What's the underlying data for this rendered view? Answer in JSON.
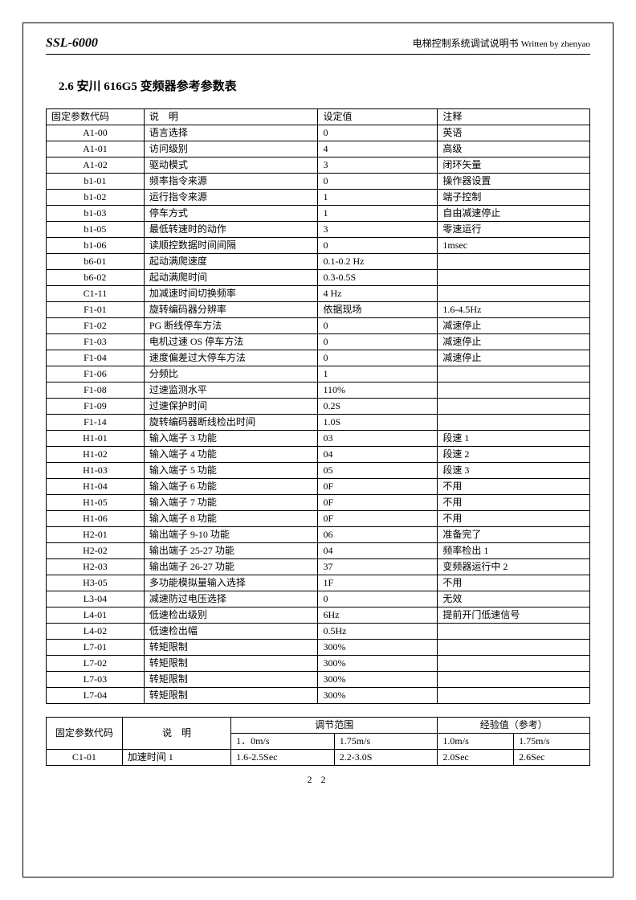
{
  "header": {
    "model": "SSL-6000",
    "doc_title": "电梯控制系统调试说明书",
    "written_by": "Written by zhenyao"
  },
  "section_heading": "2.6 安川 616G5 变频器参考参数表",
  "main_table": {
    "headers": {
      "code": "固定参数代码",
      "desc": "说　明",
      "value": "设定值",
      "note": "注释"
    },
    "rows": [
      {
        "code": "A1-00",
        "desc": "语言选择",
        "value": "0",
        "note": "英语"
      },
      {
        "code": "A1-01",
        "desc": "访问级别",
        "value": "4",
        "note": "高级"
      },
      {
        "code": "A1-02",
        "desc": "驱动模式",
        "value": "3",
        "note": "闭环矢量"
      },
      {
        "code": "b1-01",
        "desc": "频率指令来源",
        "value": "0",
        "note": "操作器设置"
      },
      {
        "code": "b1-02",
        "desc": "运行指令来源",
        "value": "1",
        "note": "端子控制"
      },
      {
        "code": "b1-03",
        "desc": "停车方式",
        "value": "1",
        "note": "自由减速停止"
      },
      {
        "code": "b1-05",
        "desc": "最低转速时的动作",
        "value": "3",
        "note": "零速运行"
      },
      {
        "code": "b1-06",
        "desc": "读顺控数据时间间隔",
        "value": "0",
        "note": "1msec"
      },
      {
        "code": "b6-01",
        "desc": "起动满爬速度",
        "value": "0.1-0.2 Hz",
        "note": ""
      },
      {
        "code": "b6-02",
        "desc": "起动满爬时间",
        "value": "0.3-0.5S",
        "note": ""
      },
      {
        "code": "C1-11",
        "desc": "加减速时间切换频率",
        "value": "4 Hz",
        "note": ""
      },
      {
        "code": "F1-01",
        "desc": "旋转编码器分辨率",
        "value": "依据现场",
        "note": "1.6-4.5Hz"
      },
      {
        "code": "F1-02",
        "desc": "PG 断线停车方法",
        "value": "0",
        "note": "减速停止"
      },
      {
        "code": "F1-03",
        "desc": "电机过速 OS 停车方法",
        "value": "0",
        "note": "减速停止"
      },
      {
        "code": "F1-04",
        "desc": "速度偏差过大停车方法",
        "value": "0",
        "note": "减速停止"
      },
      {
        "code": "F1-06",
        "desc": "分频比",
        "value": "1",
        "note": ""
      },
      {
        "code": "F1-08",
        "desc": "过速监测水平",
        "value": "110%",
        "note": ""
      },
      {
        "code": "F1-09",
        "desc": "过速保护时间",
        "value": "0.2S",
        "note": ""
      },
      {
        "code": "F1-14",
        "desc": "旋转编码器断线检出时间",
        "value": "1.0S",
        "note": ""
      },
      {
        "code": "H1-01",
        "desc": "输入端子 3 功能",
        "value": "03",
        "note": "段速 1"
      },
      {
        "code": "H1-02",
        "desc": "输入端子 4 功能",
        "value": "04",
        "note": "段速 2"
      },
      {
        "code": "H1-03",
        "desc": "输入端子 5 功能",
        "value": "05",
        "note": "段速 3"
      },
      {
        "code": "H1-04",
        "desc": "输入端子 6 功能",
        "value": "0F",
        "note": "不用"
      },
      {
        "code": "H1-05",
        "desc": "输入端子 7 功能",
        "value": "0F",
        "note": "不用"
      },
      {
        "code": "H1-06",
        "desc": "输入端子 8 功能",
        "value": "0F",
        "note": "不用"
      },
      {
        "code": "H2-01",
        "desc": "输出端子 9-10 功能",
        "value": "06",
        "note": "准备完了"
      },
      {
        "code": "H2-02",
        "desc": "输出端子 25-27 功能",
        "value": "04",
        "note": "频率检出 1"
      },
      {
        "code": "H2-03",
        "desc": "输出端子 26-27 功能",
        "value": "37",
        "note": "变频器运行中 2"
      },
      {
        "code": "H3-05",
        "desc": "多功能模拟量输入选择",
        "value": "1F",
        "note": "不用"
      },
      {
        "code": "L3-04",
        "desc": "减速防过电压选择",
        "value": "0",
        "note": "无效"
      },
      {
        "code": "L4-01",
        "desc": "低速检出级别",
        "value": "6Hz",
        "note": "提前开门低速信号"
      },
      {
        "code": "L4-02",
        "desc": "低速检出幅",
        "value": "0.5Hz",
        "note": ""
      },
      {
        "code": "L7-01",
        "desc": "转矩限制",
        "value": "300%",
        "note": ""
      },
      {
        "code": "L7-02",
        "desc": "转矩限制",
        "value": "300%",
        "note": ""
      },
      {
        "code": "L7-03",
        "desc": "转矩限制",
        "value": "300%",
        "note": ""
      },
      {
        "code": "L7-04",
        "desc": "转矩限制",
        "value": "300%",
        "note": ""
      }
    ]
  },
  "sec_table": {
    "h_code": "固定参数代码",
    "h_desc": "说　明",
    "h_range": "调节范围",
    "h_ref": "经验值（参考）",
    "sub1": "1．0m/s",
    "sub2": "1.75m/s",
    "sub3": "1.0m/s",
    "sub4": "1.75m/s",
    "rows": [
      {
        "code": "C1-01",
        "desc": "加速时间 1",
        "v1": "1.6-2.5Sec",
        "v2": "2.2-3.0S",
        "v3": "2.0Sec",
        "v4": "2.6Sec"
      }
    ]
  },
  "page_number": "2 2"
}
